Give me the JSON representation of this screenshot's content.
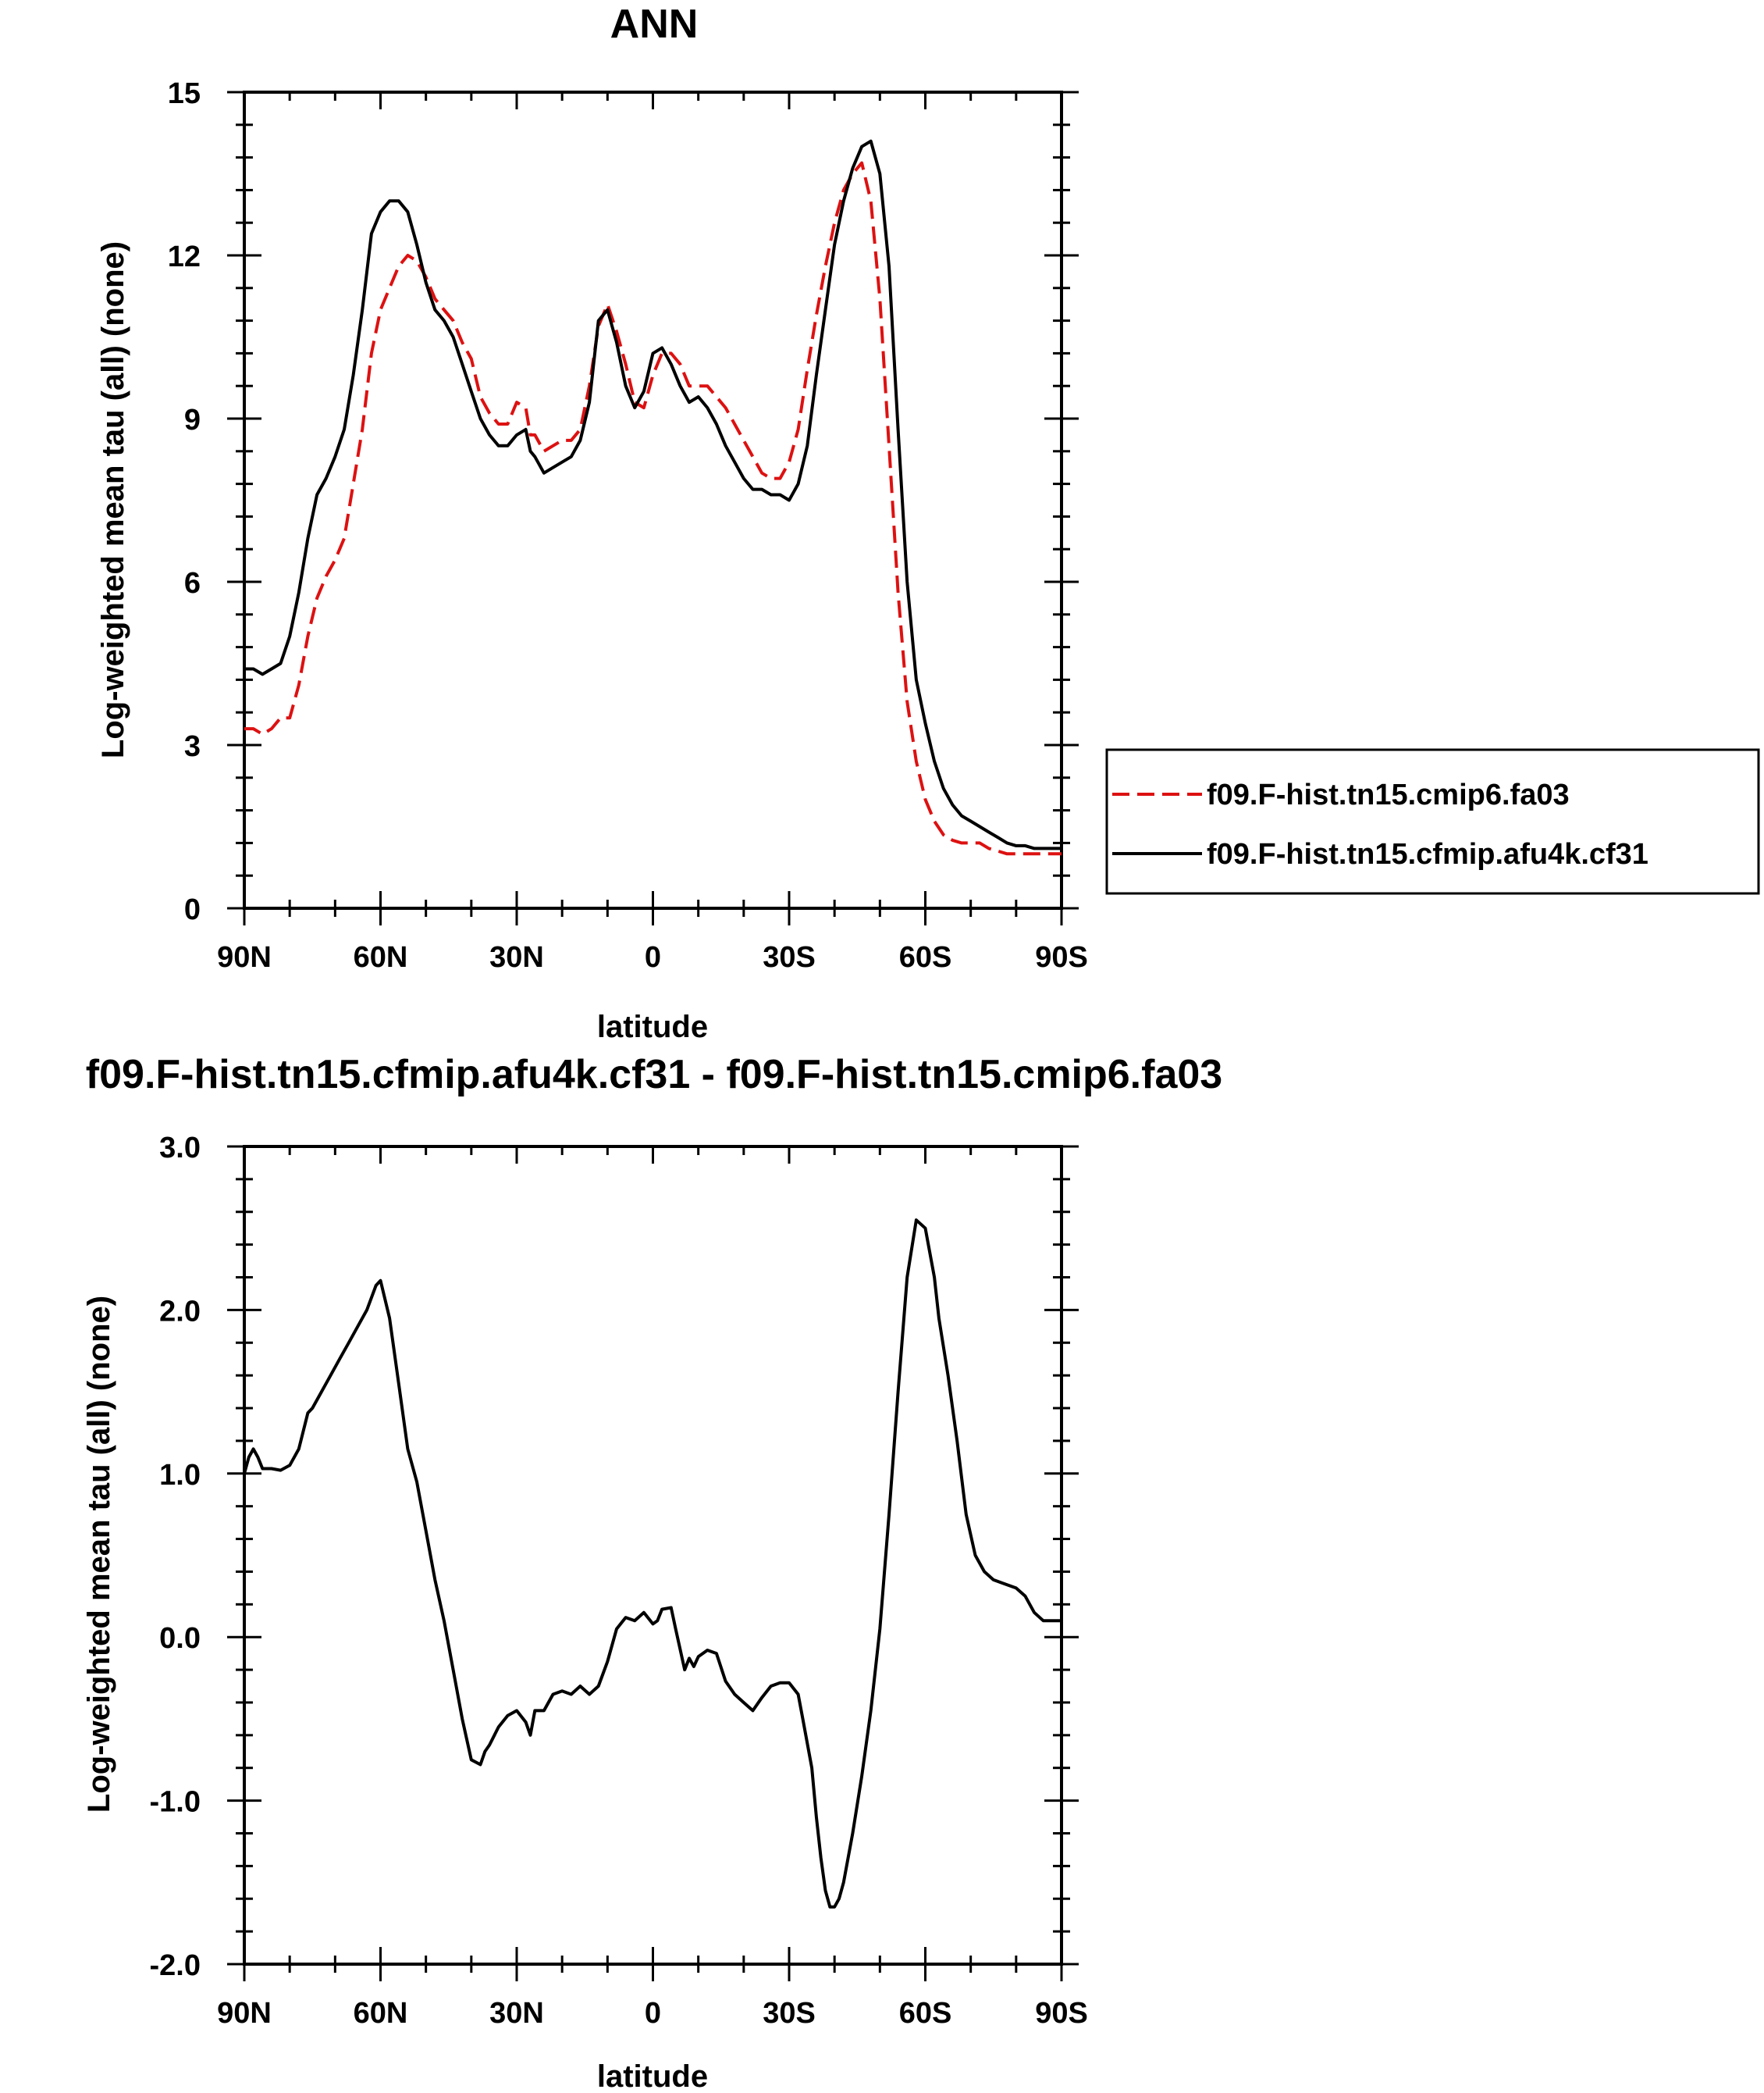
{
  "chart_data": [
    {
      "type": "line",
      "title": "ANN",
      "xlabel": "latitude",
      "ylabel": "Log-weighted mean tau (all) (none)",
      "xlim": [
        90,
        -90
      ],
      "ylim": [
        0,
        15
      ],
      "xticks": [
        {
          "value": 90,
          "label": "90N"
        },
        {
          "value": 60,
          "label": "60N"
        },
        {
          "value": 30,
          "label": "30N"
        },
        {
          "value": 0,
          "label": "0"
        },
        {
          "value": -30,
          "label": "30S"
        },
        {
          "value": -60,
          "label": "60S"
        },
        {
          "value": -90,
          "label": "90S"
        }
      ],
      "yticks": [
        {
          "value": 0,
          "label": "0"
        },
        {
          "value": 3,
          "label": "3"
        },
        {
          "value": 6,
          "label": "6"
        },
        {
          "value": 9,
          "label": "9"
        },
        {
          "value": 12,
          "label": "12"
        },
        {
          "value": 15,
          "label": "15"
        }
      ],
      "grid": false,
      "legend_position": "right",
      "series": [
        {
          "name": "f09.F-hist.tn15.cmip6.fa03",
          "color": "#dd1111",
          "dash": "dashed",
          "x": [
            90,
            88,
            86,
            84,
            82,
            80,
            78,
            76,
            74,
            72,
            70,
            68,
            66,
            64,
            62,
            60,
            58,
            56,
            54,
            52,
            50,
            48,
            46,
            44,
            42,
            40,
            38,
            36,
            34,
            32,
            30,
            28,
            27,
            26,
            24,
            22,
            20,
            18,
            16,
            14,
            12,
            10,
            8,
            6,
            4,
            2,
            0,
            -2,
            -4,
            -6,
            -8,
            -10,
            -12,
            -14,
            -16,
            -18,
            -20,
            -22,
            -24,
            -26,
            -28,
            -30,
            -32,
            -34,
            -36,
            -38,
            -40,
            -42,
            -44,
            -46,
            -48,
            -50,
            -52,
            -54,
            -56,
            -58,
            -60,
            -62,
            -64,
            -66,
            -68,
            -70,
            -72,
            -74,
            -76,
            -78,
            -80,
            -82,
            -84,
            -86,
            -88,
            -90
          ],
          "y": [
            3.3,
            3.3,
            3.2,
            3.3,
            3.5,
            3.5,
            4.1,
            5.0,
            5.7,
            6.1,
            6.4,
            6.8,
            7.8,
            8.8,
            10.2,
            11.0,
            11.4,
            11.8,
            12.0,
            11.9,
            11.6,
            11.2,
            11.0,
            10.8,
            10.4,
            10.1,
            9.4,
            9.1,
            8.9,
            8.9,
            9.3,
            9.2,
            8.7,
            8.7,
            8.4,
            8.5,
            8.6,
            8.6,
            8.8,
            9.6,
            10.7,
            11.1,
            10.6,
            10.0,
            9.3,
            9.2,
            9.8,
            10.2,
            10.2,
            10.0,
            9.6,
            9.6,
            9.6,
            9.4,
            9.2,
            8.9,
            8.6,
            8.3,
            8.0,
            7.9,
            7.9,
            8.2,
            8.8,
            9.9,
            10.9,
            11.8,
            12.6,
            13.2,
            13.5,
            13.7,
            13.0,
            11.2,
            8.5,
            5.8,
            3.8,
            2.7,
            2.0,
            1.6,
            1.35,
            1.25,
            1.2,
            1.2,
            1.2,
            1.1,
            1.05,
            1.0,
            1.0,
            1.0,
            1.0,
            1.0,
            1.0,
            1.0
          ]
        },
        {
          "name": "f09.F-hist.tn15.cfmip.afu4k.cf31",
          "color": "#000000",
          "dash": "solid",
          "x": [
            90,
            88,
            86,
            84,
            82,
            80,
            78,
            76,
            74,
            72,
            70,
            68,
            66,
            64,
            62,
            60,
            58,
            56,
            54,
            52,
            50,
            48,
            46,
            44,
            42,
            40,
            38,
            36,
            34,
            32,
            30,
            28,
            27,
            26,
            24,
            22,
            20,
            18,
            16,
            14,
            12,
            10,
            8,
            6,
            4,
            2,
            0,
            -2,
            -4,
            -6,
            -8,
            -10,
            -12,
            -14,
            -16,
            -18,
            -20,
            -22,
            -24,
            -26,
            -28,
            -30,
            -32,
            -34,
            -36,
            -38,
            -40,
            -42,
            -44,
            -46,
            -48,
            -50,
            -52,
            -54,
            -56,
            -58,
            -60,
            -62,
            -64,
            -66,
            -68,
            -70,
            -72,
            -74,
            -76,
            -78,
            -80,
            -82,
            -84,
            -86,
            -88,
            -90
          ],
          "y": [
            4.4,
            4.4,
            4.3,
            4.4,
            4.5,
            5.0,
            5.8,
            6.8,
            7.6,
            7.9,
            8.3,
            8.8,
            9.8,
            11.0,
            12.4,
            12.8,
            13.0,
            13.0,
            12.8,
            12.2,
            11.5,
            11.0,
            10.8,
            10.5,
            10.0,
            9.5,
            9.0,
            8.7,
            8.5,
            8.5,
            8.7,
            8.8,
            8.4,
            8.3,
            8.0,
            8.1,
            8.2,
            8.3,
            8.6,
            9.3,
            10.8,
            11.0,
            10.4,
            9.6,
            9.2,
            9.5,
            10.2,
            10.3,
            10.0,
            9.6,
            9.3,
            9.4,
            9.2,
            8.9,
            8.5,
            8.2,
            7.9,
            7.7,
            7.7,
            7.6,
            7.6,
            7.5,
            7.8,
            8.5,
            9.8,
            11.0,
            12.2,
            13.0,
            13.6,
            14.0,
            14.1,
            13.5,
            11.8,
            8.8,
            6.0,
            4.2,
            3.4,
            2.7,
            2.2,
            1.9,
            1.7,
            1.6,
            1.5,
            1.4,
            1.3,
            1.2,
            1.15,
            1.15,
            1.1,
            1.1,
            1.1,
            1.1
          ]
        }
      ]
    },
    {
      "type": "line",
      "title": "f09.F-hist.tn15.cfmip.afu4k.cf31 - f09.F-hist.tn15.cmip6.fa03",
      "xlabel": "latitude",
      "ylabel": "Log-weighted mean tau (all) (none)",
      "xlim": [
        90,
        -90
      ],
      "ylim": [
        -2.0,
        3.0
      ],
      "xticks": [
        {
          "value": 90,
          "label": "90N"
        },
        {
          "value": 60,
          "label": "60N"
        },
        {
          "value": 30,
          "label": "30N"
        },
        {
          "value": 0,
          "label": "0"
        },
        {
          "value": -30,
          "label": "30S"
        },
        {
          "value": -60,
          "label": "60S"
        },
        {
          "value": -90,
          "label": "90S"
        }
      ],
      "yticks": [
        {
          "value": -2.0,
          "label": "-2.0"
        },
        {
          "value": -1.0,
          "label": "-1.0"
        },
        {
          "value": 0.0,
          "label": "0.0"
        },
        {
          "value": 1.0,
          "label": "1.0"
        },
        {
          "value": 2.0,
          "label": "2.0"
        },
        {
          "value": 3.0,
          "label": "3.0"
        }
      ],
      "grid": false,
      "series": [
        {
          "color": "#000000",
          "dash": "solid",
          "x": [
            90,
            89,
            88,
            87,
            86,
            84,
            82,
            80,
            78,
            76,
            75,
            73,
            71,
            69,
            67,
            65,
            63,
            61,
            60,
            58,
            56,
            54,
            52,
            50,
            48,
            46,
            44,
            42,
            40,
            38,
            37,
            36,
            34,
            32,
            30,
            28,
            27,
            26,
            24,
            22,
            20,
            18,
            16,
            14,
            12,
            10,
            8,
            6,
            4,
            2,
            0,
            -1,
            -2,
            -4,
            -5,
            -7,
            -8,
            -9,
            -10,
            -12,
            -14,
            -16,
            -18,
            -20,
            -22,
            -24,
            -26,
            -28,
            -30,
            -32,
            -33,
            -35,
            -36,
            -37,
            -38,
            -39,
            -40,
            -41,
            -42,
            -43,
            -44,
            -46,
            -48,
            -50,
            -52,
            -54,
            -56,
            -58,
            -60,
            -62,
            -63,
            -65,
            -67,
            -69,
            -71,
            -73,
            -75,
            -77,
            -80,
            -82,
            -84,
            -86,
            -88,
            -90
          ],
          "y": [
            1.0,
            1.1,
            1.15,
            1.1,
            1.03,
            1.03,
            1.02,
            1.05,
            1.15,
            1.37,
            1.4,
            1.5,
            1.6,
            1.7,
            1.8,
            1.9,
            2.0,
            2.15,
            2.18,
            1.95,
            1.55,
            1.15,
            0.95,
            0.65,
            0.35,
            0.1,
            -0.2,
            -0.5,
            -0.75,
            -0.78,
            -0.7,
            -0.66,
            -0.55,
            -0.48,
            -0.45,
            -0.52,
            -0.6,
            -0.45,
            -0.45,
            -0.35,
            -0.33,
            -0.35,
            -0.3,
            -0.35,
            -0.3,
            -0.15,
            0.05,
            0.12,
            0.1,
            0.15,
            0.08,
            0.1,
            0.17,
            0.18,
            0.05,
            -0.2,
            -0.13,
            -0.18,
            -0.12,
            -0.08,
            -0.1,
            -0.27,
            -0.35,
            -0.4,
            -0.45,
            -0.37,
            -0.3,
            -0.28,
            -0.28,
            -0.35,
            -0.5,
            -0.8,
            -1.1,
            -1.35,
            -1.55,
            -1.65,
            -1.65,
            -1.6,
            -1.5,
            -1.35,
            -1.2,
            -0.85,
            -0.45,
            0.05,
            0.75,
            1.5,
            2.2,
            2.55,
            2.5,
            2.2,
            1.95,
            1.6,
            1.2,
            0.75,
            0.5,
            0.4,
            0.35,
            0.33,
            0.3,
            0.25,
            0.15,
            0.1,
            0.1,
            0.1
          ]
        }
      ]
    }
  ]
}
